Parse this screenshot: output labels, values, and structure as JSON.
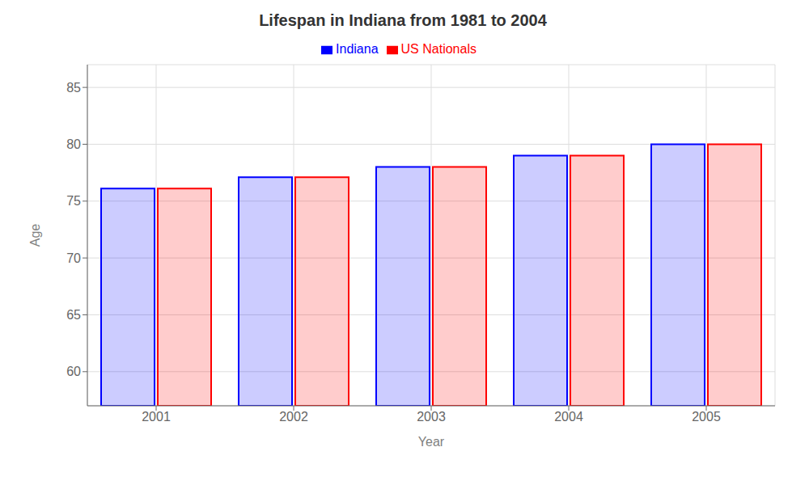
{
  "chart_data": {
    "type": "bar",
    "title": "Lifespan in Indiana from 1981 to 2004",
    "xlabel": "Year",
    "ylabel": "Age",
    "categories": [
      "2001",
      "2002",
      "2003",
      "2004",
      "2005"
    ],
    "series": [
      {
        "name": "Indiana",
        "color": "#0000ff",
        "values": [
          76.1,
          77.1,
          78.0,
          79.0,
          80.0
        ]
      },
      {
        "name": "US Nationals",
        "color": "#ff0000",
        "values": [
          76.1,
          77.1,
          78.0,
          79.0,
          80.0
        ]
      }
    ],
    "ylim": [
      57,
      87
    ],
    "yticks": [
      60,
      65,
      70,
      75,
      80,
      85
    ],
    "grid": true,
    "legend": "top"
  }
}
